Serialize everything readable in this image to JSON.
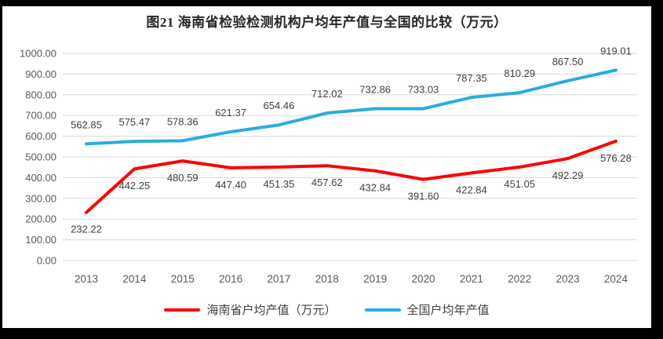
{
  "title": "图21  海南省检验检测机构户均年产值与全国的比较（万元）",
  "colors": {
    "page_bg": "#000000",
    "card_bg": "#ffffff",
    "grid": "#d9d9d9",
    "axis_text": "#595959",
    "data_label": "#404040",
    "title_text": "#262626",
    "hainan_red": "#fe0000",
    "national_blue": "#29abe2"
  },
  "chart_data": {
    "type": "line",
    "title": "图21  海南省检验检测机构户均年产值与全国的比较（万元）",
    "categories": [
      "2013",
      "2014",
      "2015",
      "2016",
      "2017",
      "2018",
      "2019",
      "2020",
      "2021",
      "2022",
      "2023",
      "2024"
    ],
    "series": [
      {
        "id": "hainan",
        "name": "海南省户均产值（万元）",
        "color": "#fe0000",
        "label_position": "below",
        "values": [
          232.22,
          442.25,
          480.59,
          447.4,
          451.35,
          457.62,
          432.84,
          391.6,
          422.84,
          451.05,
          492.29,
          576.28
        ]
      },
      {
        "id": "national",
        "name": "全国户均年产值",
        "color": "#29abe2",
        "label_position": "above",
        "values": [
          562.85,
          575.47,
          578.36,
          621.37,
          654.46,
          712.02,
          732.86,
          733.03,
          787.35,
          810.29,
          867.5,
          919.01
        ]
      }
    ],
    "ylim": [
      0,
      1000
    ],
    "ytick_step": 100,
    "yticks": [
      "1000.00",
      "900.00",
      "800.00",
      "700.00",
      "600.00",
      "500.00",
      "400.00",
      "300.00",
      "200.00",
      "100.00",
      "0.00"
    ],
    "xlabel": "",
    "ylabel": "",
    "grid": true,
    "legend_position": "bottom",
    "data_labels": true
  }
}
